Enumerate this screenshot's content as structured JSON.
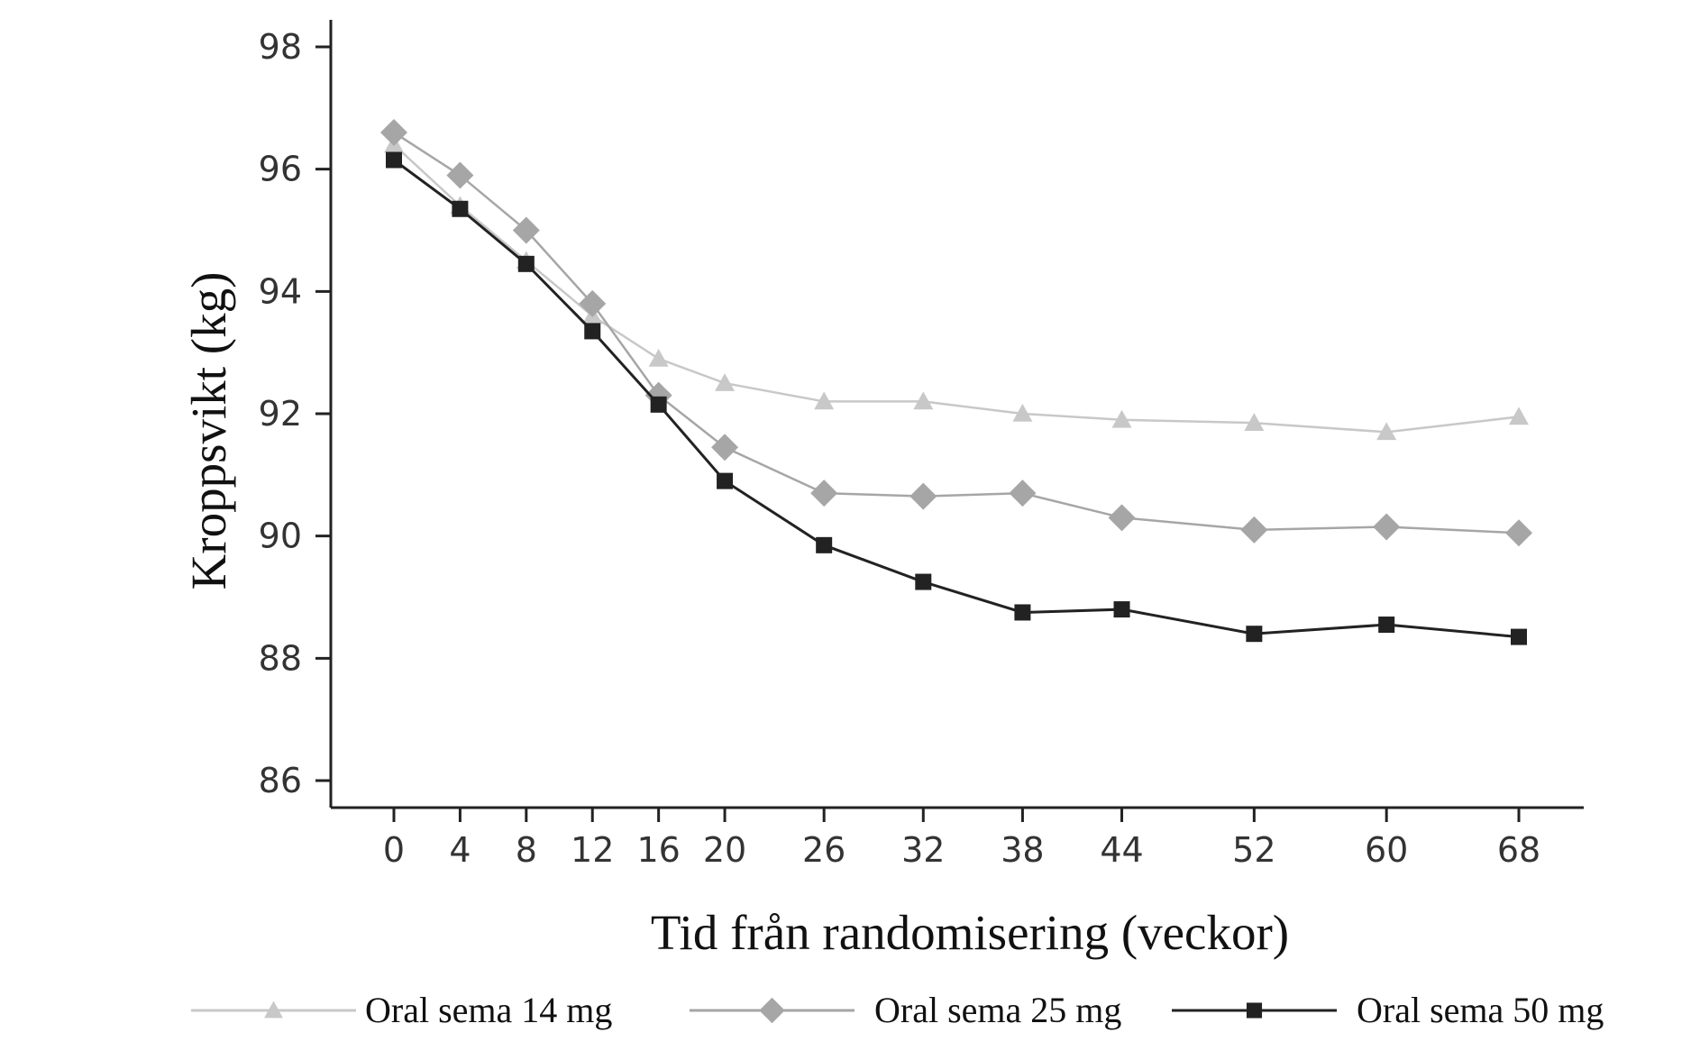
{
  "chart_data": {
    "type": "line",
    "title": "",
    "xlabel": "Tid från randomisering (veckor)",
    "ylabel": "Kroppsvikt (kg)",
    "x": [
      0,
      4,
      8,
      12,
      16,
      20,
      26,
      32,
      38,
      44,
      52,
      60,
      68
    ],
    "x_tick_labels": [
      "0",
      "4",
      "8",
      "12",
      "16",
      "20",
      "26",
      "32",
      "38",
      "44",
      "52",
      "60",
      "68"
    ],
    "ylim": [
      86,
      98
    ],
    "y_ticks": [
      86,
      88,
      90,
      92,
      94,
      96,
      98
    ],
    "y_tick_labels": [
      "86",
      "88",
      "90",
      "92",
      "94",
      "96",
      "98"
    ],
    "grid": false,
    "legend_position": "bottom",
    "series": [
      {
        "name": "Oral sema 14 mg",
        "marker": "triangle",
        "color": "#c8c8c8",
        "values": [
          96.4,
          95.4,
          94.5,
          93.6,
          92.9,
          92.5,
          92.2,
          92.2,
          92.0,
          91.9,
          91.85,
          91.7,
          91.95
        ]
      },
      {
        "name": "Oral sema 25 mg",
        "marker": "diamond",
        "color": "#a6a6a6",
        "values": [
          96.6,
          95.9,
          95.0,
          93.8,
          92.3,
          91.45,
          90.7,
          90.65,
          90.7,
          90.3,
          90.1,
          90.15,
          90.05
        ]
      },
      {
        "name": "Oral sema 50 mg",
        "marker": "square",
        "color": "#222222",
        "values": [
          96.15,
          95.35,
          94.45,
          93.35,
          92.15,
          90.9,
          89.85,
          89.25,
          88.75,
          88.8,
          88.4,
          88.55,
          88.35
        ]
      }
    ]
  }
}
